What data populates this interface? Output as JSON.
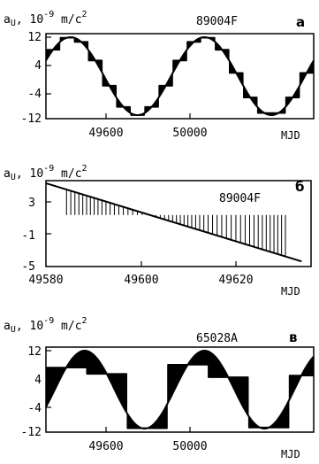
{
  "chart_data": [
    {
      "type": "line",
      "panel": "а",
      "object_label": "89004F",
      "ylabel": "a U, 10⁻⁹ m/c²",
      "ylabel_main": "a",
      "ylabel_sub": "U",
      "ylabel_rest": ", 10",
      "ylabel_exp": "-9",
      "ylabel_unit": " m/c",
      "ylabel_unit_exp": "2",
      "xlabel": "MJD",
      "xlim": [
        49480,
        50240
      ],
      "ylim": [
        -12,
        12
      ],
      "yticks": [
        12,
        4,
        -4,
        -12
      ],
      "ytick_labels": [
        "12",
        "4",
        "-4",
        "-12"
      ],
      "xticks": [
        49600,
        50000
      ],
      "xtick_labels": [
        "49600",
        "50000"
      ],
      "series": [
        {
          "kind": "sine",
          "amplitude": 11,
          "period": 380,
          "peak_x": 49550
        },
        {
          "kind": "steps",
          "step": 40
        }
      ]
    },
    {
      "type": "line",
      "panel": "б",
      "object_label": "89004F",
      "ylabel": "a U, 10⁻⁹ m/c²",
      "ylabel_main": "a",
      "ylabel_sub": "U",
      "ylabel_rest": ", 10",
      "ylabel_exp": "-9",
      "ylabel_unit": " m/c",
      "ylabel_unit_exp": "2",
      "xlabel": "MJD",
      "xlim": [
        49580,
        49636
      ],
      "ylim": [
        -5,
        5
      ],
      "yticks": [
        3,
        -1,
        -5
      ],
      "ytick_labels": [
        "3",
        "-1",
        "-5"
      ],
      "xticks": [
        49580,
        49600,
        49620
      ],
      "xtick_labels": [
        "49580",
        "49600",
        "49620"
      ],
      "series": [
        {
          "kind": "linear",
          "x": [
            49580,
            49634
          ],
          "y": [
            4.7,
            -4.4
          ]
        },
        {
          "kind": "bars",
          "baseline": 1.0,
          "x_start": 49584,
          "x_end": 49631,
          "step": 0.9
        }
      ]
    },
    {
      "type": "line",
      "panel": "в",
      "object_label": "65028A",
      "ylabel": "a U, 10⁻⁹ m/c²",
      "ylabel_main": "a",
      "ylabel_sub": "U",
      "ylabel_rest": ", 10",
      "ylabel_exp": "-9",
      "ylabel_unit": " m/c",
      "ylabel_unit_exp": "2",
      "xlabel": "MJD",
      "xlim": [
        49480,
        50240
      ],
      "ylim": [
        -12,
        12
      ],
      "yticks": [
        12,
        4,
        -4,
        -12
      ],
      "ytick_labels": [
        "12",
        "4",
        "-4",
        "-12"
      ],
      "xticks": [
        49600,
        50000
      ],
      "xtick_labels": [
        "49600",
        "50000"
      ],
      "series": [
        {
          "kind": "sine",
          "amplitude": 11,
          "period": 340,
          "peak_x": 49590
        },
        {
          "kind": "steps",
          "step": 115
        }
      ]
    }
  ]
}
